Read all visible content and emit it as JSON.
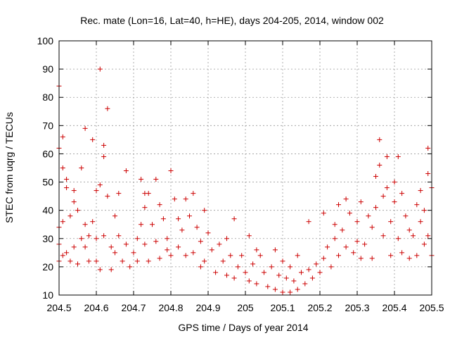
{
  "chart_data": {
    "type": "scatter",
    "title": "Rec. mate (Lon=16, Lat=40, h=HE), days 204-205, 2014, window 002",
    "xlabel": "GPS time / Days of year 2014",
    "ylabel": "STEC from uqrg / TECUs",
    "xlim": [
      204.5,
      205.5
    ],
    "ylim": [
      10,
      100
    ],
    "x_ticks": [
      204.5,
      204.6,
      204.7,
      204.8,
      204.9,
      205,
      205.1,
      205.2,
      205.3,
      205.4,
      205.5
    ],
    "x_tick_labels": [
      "204.5",
      "204.6",
      "204.7",
      "204.8",
      "204.9",
      "205",
      "205.1",
      "205.2",
      "205.3",
      "205.4",
      "205.5"
    ],
    "y_ticks": [
      10,
      20,
      30,
      40,
      50,
      60,
      70,
      80,
      90,
      100
    ],
    "y_tick_labels": [
      "10",
      "20",
      "30",
      "40",
      "50",
      "60",
      "70",
      "80",
      "90",
      "100"
    ],
    "grid": true,
    "marker": "+",
    "marker_color": "#cc0000",
    "series": [
      {
        "points": [
          [
            204.5,
            84
          ],
          [
            204.5,
            62
          ],
          [
            204.5,
            34
          ],
          [
            204.5,
            28
          ],
          [
            204.5,
            22
          ],
          [
            204.51,
            55
          ],
          [
            204.51,
            66
          ],
          [
            204.51,
            36
          ],
          [
            204.51,
            24
          ],
          [
            204.52,
            48
          ],
          [
            204.52,
            51
          ],
          [
            204.52,
            25
          ],
          [
            204.53,
            38
          ],
          [
            204.53,
            22
          ],
          [
            204.54,
            47
          ],
          [
            204.54,
            43
          ],
          [
            204.54,
            27
          ],
          [
            204.55,
            40
          ],
          [
            204.55,
            21
          ],
          [
            204.56,
            55
          ],
          [
            204.56,
            30
          ],
          [
            204.57,
            69
          ],
          [
            204.57,
            35
          ],
          [
            204.57,
            27
          ],
          [
            204.58,
            31
          ],
          [
            204.58,
            22
          ],
          [
            204.59,
            65
          ],
          [
            204.59,
            36
          ],
          [
            204.6,
            47
          ],
          [
            204.6,
            30
          ],
          [
            204.6,
            22
          ],
          [
            204.61,
            90
          ],
          [
            204.61,
            49
          ],
          [
            204.61,
            19
          ],
          [
            204.62,
            63
          ],
          [
            204.62,
            59
          ],
          [
            204.62,
            31
          ],
          [
            204.63,
            76
          ],
          [
            204.63,
            45
          ],
          [
            204.64,
            27
          ],
          [
            204.64,
            19
          ],
          [
            204.65,
            38
          ],
          [
            204.65,
            25
          ],
          [
            204.66,
            46
          ],
          [
            204.66,
            31
          ],
          [
            204.67,
            22
          ],
          [
            204.68,
            54
          ],
          [
            204.68,
            28
          ],
          [
            204.69,
            20
          ],
          [
            204.7,
            25
          ],
          [
            204.71,
            30
          ],
          [
            204.71,
            22
          ],
          [
            204.72,
            51
          ],
          [
            204.72,
            35
          ],
          [
            204.73,
            41
          ],
          [
            204.73,
            46
          ],
          [
            204.73,
            28
          ],
          [
            204.74,
            46
          ],
          [
            204.74,
            22
          ],
          [
            204.75,
            35
          ],
          [
            204.76,
            51
          ],
          [
            204.76,
            29
          ],
          [
            204.77,
            42
          ],
          [
            204.77,
            23
          ],
          [
            204.78,
            37
          ],
          [
            204.79,
            30
          ],
          [
            204.79,
            26
          ],
          [
            204.8,
            54
          ],
          [
            204.8,
            24
          ],
          [
            204.81,
            44
          ],
          [
            204.82,
            37
          ],
          [
            204.82,
            27
          ],
          [
            204.83,
            33
          ],
          [
            204.84,
            44
          ],
          [
            204.84,
            24
          ],
          [
            204.85,
            38
          ],
          [
            204.86,
            46
          ],
          [
            204.86,
            25
          ],
          [
            204.87,
            34
          ],
          [
            204.88,
            29
          ],
          [
            204.88,
            20
          ],
          [
            204.89,
            40
          ],
          [
            204.89,
            22
          ],
          [
            204.9,
            32
          ],
          [
            204.91,
            26
          ],
          [
            204.92,
            18
          ],
          [
            204.93,
            28
          ],
          [
            204.94,
            22
          ],
          [
            204.95,
            30
          ],
          [
            204.95,
            17
          ],
          [
            204.96,
            24
          ],
          [
            204.97,
            37
          ],
          [
            204.97,
            16
          ],
          [
            204.98,
            20
          ],
          [
            204.99,
            24
          ],
          [
            205.0,
            18
          ],
          [
            205.01,
            31
          ],
          [
            205.01,
            15
          ],
          [
            205.02,
            21
          ],
          [
            205.03,
            26
          ],
          [
            205.03,
            14
          ],
          [
            205.04,
            24
          ],
          [
            205.05,
            18
          ],
          [
            205.06,
            13
          ],
          [
            205.07,
            20
          ],
          [
            205.08,
            26
          ],
          [
            205.08,
            12
          ],
          [
            205.09,
            17
          ],
          [
            205.1,
            22
          ],
          [
            205.1,
            11
          ],
          [
            205.11,
            16
          ],
          [
            205.12,
            20
          ],
          [
            205.12,
            11
          ],
          [
            205.13,
            15
          ],
          [
            205.14,
            24
          ],
          [
            205.14,
            12
          ],
          [
            205.15,
            18
          ],
          [
            205.16,
            14
          ],
          [
            205.17,
            36
          ],
          [
            205.17,
            19
          ],
          [
            205.18,
            16
          ],
          [
            205.19,
            21
          ],
          [
            205.2,
            18
          ],
          [
            205.21,
            23
          ],
          [
            205.21,
            39
          ],
          [
            205.22,
            27
          ],
          [
            205.23,
            20
          ],
          [
            205.24,
            35
          ],
          [
            205.24,
            30
          ],
          [
            205.25,
            42
          ],
          [
            205.25,
            24
          ],
          [
            205.26,
            33
          ],
          [
            205.27,
            44
          ],
          [
            205.27,
            27
          ],
          [
            205.28,
            39
          ],
          [
            205.29,
            25
          ],
          [
            205.3,
            36
          ],
          [
            205.3,
            29
          ],
          [
            205.31,
            43
          ],
          [
            205.31,
            23
          ],
          [
            205.32,
            28
          ],
          [
            205.33,
            38
          ],
          [
            205.34,
            34
          ],
          [
            205.34,
            23
          ],
          [
            205.35,
            52
          ],
          [
            205.35,
            41
          ],
          [
            205.36,
            65
          ],
          [
            205.36,
            56
          ],
          [
            205.37,
            45
          ],
          [
            205.37,
            31
          ],
          [
            205.38,
            59
          ],
          [
            205.38,
            48
          ],
          [
            205.39,
            36
          ],
          [
            205.39,
            24
          ],
          [
            205.4,
            50
          ],
          [
            205.4,
            43
          ],
          [
            205.41,
            59
          ],
          [
            205.41,
            30
          ],
          [
            205.42,
            46
          ],
          [
            205.42,
            25
          ],
          [
            205.43,
            38
          ],
          [
            205.44,
            33
          ],
          [
            205.44,
            23
          ],
          [
            205.45,
            31
          ],
          [
            205.46,
            42
          ],
          [
            205.46,
            24
          ],
          [
            205.47,
            47
          ],
          [
            205.47,
            36
          ],
          [
            205.48,
            40
          ],
          [
            205.48,
            28
          ],
          [
            205.49,
            62
          ],
          [
            205.49,
            53
          ],
          [
            205.49,
            31
          ],
          [
            205.5,
            48
          ],
          [
            205.5,
            24
          ]
        ]
      }
    ]
  }
}
